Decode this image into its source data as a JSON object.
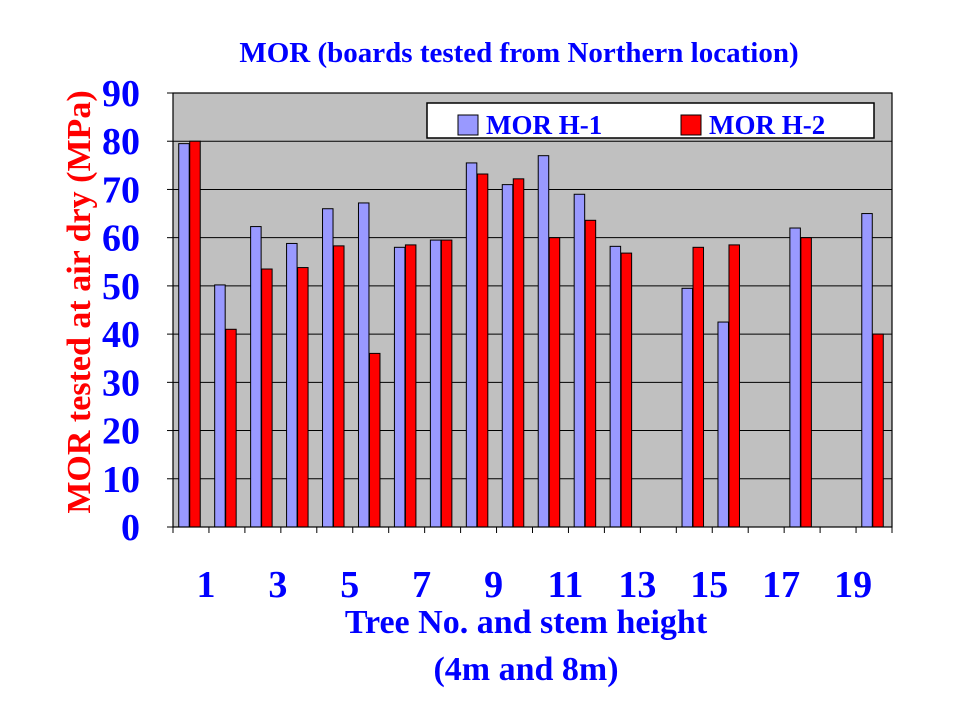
{
  "colors": {
    "plot_bg": "#c0c0c0",
    "series1": "#9999ff",
    "series2": "#ff0000",
    "title": "#0000ff",
    "ylabel": "#ff0000",
    "ticks": "#0000ff"
  },
  "chart_data": {
    "type": "bar",
    "title": "MOR (boards tested from Northern location)",
    "xlabel": "Tree No. and stem height",
    "xlabel_line2": "(4m and 8m)",
    "ylabel": "MOR tested at air dry (MPa)",
    "ylim": [
      0,
      90
    ],
    "yticks": [
      0,
      10,
      20,
      30,
      40,
      50,
      60,
      70,
      80,
      90
    ],
    "grid": true,
    "legend_position": "top-right",
    "categories": [
      "1",
      "2",
      "3",
      "4",
      "5",
      "6",
      "7",
      "8",
      "9",
      "10",
      "11",
      "12",
      "13",
      "14",
      "15",
      "16",
      "17",
      "18",
      "19",
      "20"
    ],
    "xtick_labels": [
      "1",
      "",
      "3",
      "",
      "5",
      "",
      "7",
      "",
      "9",
      "",
      "11",
      "",
      "13",
      "",
      "15",
      "",
      "17",
      "",
      "19",
      ""
    ],
    "series": [
      {
        "name": "MOR H-1",
        "values": [
          79.5,
          50.2,
          62.3,
          58.8,
          66.0,
          67.2,
          58.0,
          59.5,
          75.5,
          71.0,
          77.0,
          69.0,
          58.2,
          null,
          49.5,
          42.5,
          null,
          62.0,
          null,
          65.0
        ]
      },
      {
        "name": "MOR H-2",
        "values": [
          80.0,
          41.0,
          53.5,
          53.8,
          58.3,
          36.0,
          58.5,
          59.5,
          73.2,
          72.2,
          60.0,
          63.6,
          56.8,
          null,
          58.0,
          58.5,
          null,
          60.0,
          null,
          40.0
        ]
      }
    ]
  }
}
